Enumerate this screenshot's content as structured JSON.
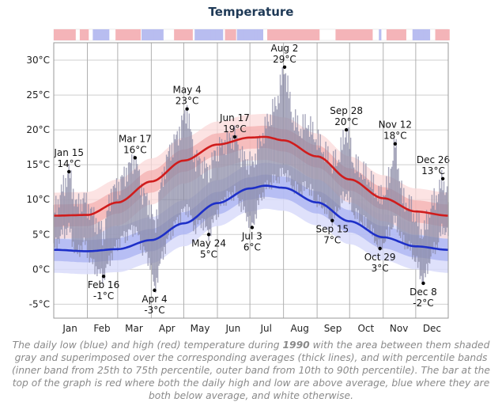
{
  "title": "Temperature",
  "caption": {
    "before": "The daily low (blue) and high (red) temperature during ",
    "year": "1990",
    "after": " with the area between them shaded gray and superimposed over the corresponding averages (thick lines), and with percentile bands (inner band from 25th to 75th percentile, outer band from 10th to 90th percentile). The bar at the top of the graph is red where both the daily high and low are above average, blue where they are both below average, and white otherwise."
  },
  "colors": {
    "high": "#d01c1c",
    "low": "#1d2fc8",
    "high_band_inner": "#f3a9a9",
    "high_band_outer": "#fbdada",
    "low_band_inner": "#aab1f2",
    "low_band_outer": "#d9dcfa",
    "daily_bar": "#8a8aa6",
    "grid": "#bdbdbd"
  },
  "chart_data": {
    "type": "area",
    "title": "Temperature",
    "x_axis": {
      "months": [
        "Jan",
        "Feb",
        "Mar",
        "Apr",
        "May",
        "Jun",
        "Jul",
        "Aug",
        "Sep",
        "Oct",
        "Nov",
        "Dec"
      ],
      "range_day_of_year": [
        1,
        365
      ]
    },
    "y_axis": {
      "unit": "°C",
      "ticks": [
        -5,
        0,
        5,
        10,
        15,
        20,
        25,
        30
      ],
      "tick_labels": [
        "-5°C",
        "0°C",
        "5°C",
        "10°C",
        "15°C",
        "20°C",
        "25°C",
        "30°C"
      ],
      "ylim": [
        -7,
        32.5
      ]
    },
    "grid": true,
    "average_high": {
      "day": [
        1,
        32,
        60,
        91,
        121,
        152,
        182,
        196,
        213,
        244,
        274,
        305,
        335,
        365
      ],
      "value": [
        7.7,
        7.8,
        9.6,
        12.6,
        15.6,
        17.9,
        18.9,
        19.0,
        18.5,
        16.2,
        12.9,
        10.2,
        8.3,
        7.7
      ]
    },
    "average_low": {
      "day": [
        1,
        32,
        60,
        91,
        121,
        152,
        182,
        196,
        213,
        244,
        274,
        305,
        335,
        365
      ],
      "value": [
        2.8,
        2.6,
        2.9,
        4.2,
        6.6,
        9.5,
        11.6,
        12.0,
        11.7,
        9.6,
        6.9,
        4.6,
        3.3,
        2.8
      ]
    },
    "percentile_band_offsets": {
      "inner_25_75": 1.6,
      "outer_10_90": 3.3
    },
    "daily": [
      {
        "day": 1,
        "low": 3,
        "high": 8
      },
      {
        "day": 8,
        "low": 5,
        "high": 11
      },
      {
        "day": 15,
        "low": 6,
        "high": 14
      },
      {
        "day": 22,
        "low": 2,
        "high": 9
      },
      {
        "day": 29,
        "low": 4,
        "high": 10
      },
      {
        "day": 36,
        "low": 1,
        "high": 8
      },
      {
        "day": 43,
        "low": -0.5,
        "high": 6
      },
      {
        "day": 47,
        "low": -1,
        "high": 5
      },
      {
        "day": 54,
        "low": 2,
        "high": 11
      },
      {
        "day": 61,
        "low": 4,
        "high": 12
      },
      {
        "day": 68,
        "low": 5,
        "high": 14
      },
      {
        "day": 76,
        "low": 6,
        "high": 16
      },
      {
        "day": 83,
        "low": 3,
        "high": 11
      },
      {
        "day": 90,
        "low": 1,
        "high": 9
      },
      {
        "day": 94,
        "low": -3,
        "high": 6
      },
      {
        "day": 101,
        "low": 2,
        "high": 13
      },
      {
        "day": 108,
        "low": 5,
        "high": 17
      },
      {
        "day": 115,
        "low": 7,
        "high": 19
      },
      {
        "day": 124,
        "low": 9,
        "high": 23
      },
      {
        "day": 131,
        "low": 6,
        "high": 16
      },
      {
        "day": 138,
        "low": 7,
        "high": 15
      },
      {
        "day": 144,
        "low": 5,
        "high": 14
      },
      {
        "day": 151,
        "low": 8,
        "high": 17
      },
      {
        "day": 158,
        "low": 10,
        "high": 18
      },
      {
        "day": 168,
        "low": 11,
        "high": 19
      },
      {
        "day": 175,
        "low": 9,
        "high": 16
      },
      {
        "day": 184,
        "low": 6,
        "high": 15
      },
      {
        "day": 191,
        "low": 10,
        "high": 18
      },
      {
        "day": 198,
        "low": 12,
        "high": 21
      },
      {
        "day": 207,
        "low": 13,
        "high": 24
      },
      {
        "day": 214,
        "low": 14,
        "high": 29
      },
      {
        "day": 221,
        "low": 12,
        "high": 22
      },
      {
        "day": 228,
        "low": 11,
        "high": 20
      },
      {
        "day": 235,
        "low": 12,
        "high": 21
      },
      {
        "day": 242,
        "low": 10,
        "high": 19
      },
      {
        "day": 250,
        "low": 9,
        "high": 17
      },
      {
        "day": 258,
        "low": 7,
        "high": 15
      },
      {
        "day": 264,
        "low": 9,
        "high": 16
      },
      {
        "day": 271,
        "low": 11,
        "high": 20
      },
      {
        "day": 278,
        "low": 8,
        "high": 15
      },
      {
        "day": 285,
        "low": 7,
        "high": 14
      },
      {
        "day": 292,
        "low": 6,
        "high": 13
      },
      {
        "day": 302,
        "low": 3,
        "high": 10
      },
      {
        "day": 309,
        "low": 5,
        "high": 12
      },
      {
        "day": 316,
        "low": 7,
        "high": 18
      },
      {
        "day": 323,
        "low": 4,
        "high": 10
      },
      {
        "day": 330,
        "low": 3,
        "high": 9
      },
      {
        "day": 336,
        "low": 1,
        "high": 7
      },
      {
        "day": 342,
        "low": -2,
        "high": 5
      },
      {
        "day": 349,
        "low": 2,
        "high": 9
      },
      {
        "day": 356,
        "low": 4,
        "high": 11
      },
      {
        "day": 360,
        "low": 6,
        "high": 13
      },
      {
        "day": 365,
        "low": 5,
        "high": 10
      }
    ],
    "annotations": [
      {
        "date": "Jan 15",
        "value_label": "14°C",
        "day": 15,
        "value": 14,
        "position": "above"
      },
      {
        "date": "Feb 16",
        "value_label": "-1°C",
        "day": 47,
        "value": -1,
        "position": "below"
      },
      {
        "date": "Mar 17",
        "value_label": "16°C",
        "day": 76,
        "value": 16,
        "position": "above"
      },
      {
        "date": "Apr 4",
        "value_label": "-3°C",
        "day": 94,
        "value": -3,
        "position": "below"
      },
      {
        "date": "May 4",
        "value_label": "23°C",
        "day": 124,
        "value": 23,
        "position": "above"
      },
      {
        "date": "May 24",
        "value_label": "5°C",
        "day": 144,
        "value": 5,
        "position": "below"
      },
      {
        "date": "Jun 17",
        "value_label": "19°C",
        "day": 168,
        "value": 19,
        "position": "above"
      },
      {
        "date": "Jul 3",
        "value_label": "6°C",
        "day": 184,
        "value": 6,
        "position": "below"
      },
      {
        "date": "Aug 2",
        "value_label": "29°C",
        "day": 214,
        "value": 29,
        "position": "above"
      },
      {
        "date": "Sep 15",
        "value_label": "7°C",
        "day": 258,
        "value": 7,
        "position": "below"
      },
      {
        "date": "Sep 28",
        "value_label": "20°C",
        "day": 271,
        "value": 20,
        "position": "above"
      },
      {
        "date": "Oct 29",
        "value_label": "3°C",
        "day": 302,
        "value": 3,
        "position": "below"
      },
      {
        "date": "Nov 12",
        "value_label": "18°C",
        "day": 316,
        "value": 18,
        "position": "above"
      },
      {
        "date": "Dec 8",
        "value_label": "-2°C",
        "day": 342,
        "value": -2,
        "position": "below"
      },
      {
        "date": "Dec 26",
        "value_label": "13°C",
        "day": 360,
        "value": 13,
        "position": "above"
      }
    ]
  }
}
